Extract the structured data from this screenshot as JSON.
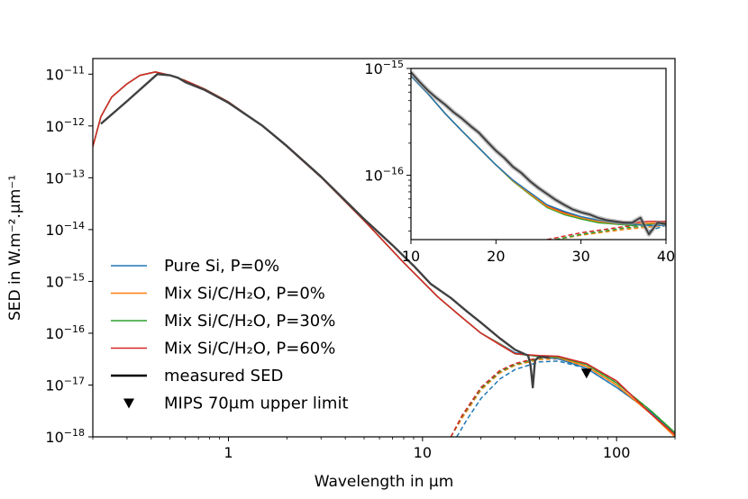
{
  "chart_data": [
    {
      "type": "line",
      "title": "",
      "xlabel": "Wavelength in μm",
      "ylabel": "SED in W.m⁻².μm⁻¹",
      "xscale": "log",
      "yscale": "log",
      "xlim": [
        0.2,
        200
      ],
      "ylim": [
        1e-18,
        2e-11
      ],
      "x_ticks": [
        {
          "value": 1,
          "label": "1"
        },
        {
          "value": 10,
          "label": "10"
        },
        {
          "value": 100,
          "label": "100"
        }
      ],
      "y_ticks": [
        {
          "value": 1e-18,
          "label": "10−18"
        },
        {
          "value": 1e-17,
          "label": "10−17"
        },
        {
          "value": 1e-16,
          "label": "10−16"
        },
        {
          "value": 1e-15,
          "label": "10−15"
        },
        {
          "value": 1e-14,
          "label": "10−14"
        },
        {
          "value": 1e-13,
          "label": "10−13"
        },
        {
          "value": 1e-12,
          "label": "10−12"
        },
        {
          "value": 1e-11,
          "label": "10−11"
        }
      ],
      "legend_position": "lower-left",
      "series": [
        {
          "name": "Pure Si, P=0%",
          "color": "#1f77b4",
          "style": "solid",
          "x": [
            0.2,
            0.22,
            0.25,
            0.3,
            0.35,
            0.42,
            0.5,
            0.6,
            0.75,
            1.0,
            1.5,
            2.0,
            3.0,
            5.0,
            8.0,
            12.0,
            16.0,
            20.0,
            25.0,
            30.0,
            40.0,
            50.0,
            70.0,
            100.0,
            150.0,
            200.0
          ],
          "y": [
            4e-13,
            1.5e-12,
            3.6e-12,
            6.5e-12,
            9.5e-12,
            1.1e-11,
            9.5e-12,
            7.5e-12,
            5.2e-12,
            2.9e-12,
            1e-12,
            4e-13,
            1.02e-13,
            1.5e-14,
            2.3e-15,
            5e-16,
            2e-16,
            1e-16,
            6.3e-17,
            4.2e-17,
            3.5e-17,
            3.2e-17,
            2.1e-17,
            9e-18,
            3e-18,
            1.15e-18
          ]
        },
        {
          "name": "Mix Si/C/H₂O, P=0%",
          "color": "#ff7f0e",
          "style": "solid",
          "x": [
            0.2,
            0.22,
            0.25,
            0.3,
            0.35,
            0.42,
            0.5,
            0.6,
            0.75,
            1.0,
            1.5,
            2.0,
            3.0,
            5.0,
            8.0,
            12.0,
            16.0,
            20.0,
            25.0,
            30.0,
            40.0,
            50.0,
            70.0,
            100.0,
            150.0,
            200.0
          ],
          "y": [
            4e-13,
            1.5e-12,
            3.6e-12,
            6.5e-12,
            9.5e-12,
            1.1e-11,
            9.5e-12,
            7.5e-12,
            5.2e-12,
            2.9e-12,
            1e-12,
            4e-13,
            1.02e-13,
            1.5e-14,
            2.3e-15,
            5e-16,
            2e-16,
            1e-16,
            6.2e-17,
            4e-17,
            3.6e-17,
            3.4e-17,
            2.3e-17,
            1e-17,
            2.8e-18,
            1e-18
          ]
        },
        {
          "name": "Mix Si/C/H₂O, P=30%",
          "color": "#2ca02c",
          "style": "solid",
          "x": [
            0.2,
            0.22,
            0.25,
            0.3,
            0.35,
            0.42,
            0.5,
            0.6,
            0.75,
            1.0,
            1.5,
            2.0,
            3.0,
            5.0,
            8.0,
            12.0,
            16.0,
            20.0,
            25.0,
            30.0,
            40.0,
            50.0,
            70.0,
            100.0,
            150.0,
            200.0
          ],
          "y": [
            4e-13,
            1.5e-12,
            3.6e-12,
            6.5e-12,
            9.5e-12,
            1.1e-11,
            9.5e-12,
            7.5e-12,
            5.2e-12,
            2.9e-12,
            1e-12,
            4e-13,
            1.02e-13,
            1.5e-14,
            2.3e-15,
            5e-16,
            2e-16,
            1e-16,
            6.1e-17,
            4e-17,
            3.6e-17,
            3.5e-17,
            2.5e-17,
            1.1e-17,
            3.2e-18,
            1.2e-18
          ]
        },
        {
          "name": "Mix Si/C/H₂O, P=60%",
          "color": "#d62728",
          "style": "solid",
          "x": [
            0.2,
            0.22,
            0.25,
            0.3,
            0.35,
            0.42,
            0.5,
            0.6,
            0.75,
            1.0,
            1.5,
            2.0,
            3.0,
            5.0,
            8.0,
            12.0,
            16.0,
            20.0,
            25.0,
            30.0,
            40.0,
            50.0,
            70.0,
            100.0,
            150.0,
            200.0
          ],
          "y": [
            4e-13,
            1.5e-12,
            3.6e-12,
            6.5e-12,
            9.5e-12,
            1.1e-11,
            9.5e-12,
            7.5e-12,
            5.2e-12,
            2.9e-12,
            1e-12,
            4e-13,
            1.02e-13,
            1.5e-14,
            2.3e-15,
            5e-16,
            2e-16,
            1e-16,
            6e-17,
            4e-17,
            3.7e-17,
            3.6e-17,
            2.6e-17,
            1.2e-17,
            2.8e-18,
            1.1e-18
          ]
        },
        {
          "name": "measured SED",
          "color": "#404040",
          "style": "solid",
          "x": [
            0.22,
            0.3,
            0.43,
            0.5,
            0.55,
            0.6,
            0.75,
            1.0,
            1.5,
            2.0,
            3.0,
            5.0,
            7.0,
            9.0,
            11.0,
            14.0,
            17.0,
            20.0,
            25.0,
            30.0,
            35.0,
            36.0,
            37.0,
            38.0,
            40.0,
            45.0
          ],
          "y": [
            1.1e-12,
            3e-12,
            1e-11,
            9.5e-12,
            8.5e-12,
            7e-12,
            5e-12,
            2.8e-12,
            1e-12,
            4.1e-13,
            1.05e-13,
            1.6e-14,
            5e-15,
            2e-15,
            9e-16,
            4.8e-16,
            2.6e-16,
            1.6e-16,
            8e-17,
            4.8e-17,
            3.7e-17,
            2.5e-17,
            9e-18,
            3e-17,
            3.5e-17,
            3.4e-17
          ]
        }
      ],
      "thermal_components": [
        {
          "name": "Pure Si, P=0%",
          "color": "#1f77b4",
          "style": "dashed",
          "x": [
            15,
            17,
            20,
            25,
            30,
            40,
            50,
            70,
            100,
            150,
            200
          ],
          "y": [
            1e-18,
            2.2e-18,
            5.5e-18,
            1.3e-17,
            2e-17,
            2.8e-17,
            2.9e-17,
            2.1e-17,
            9e-18,
            3e-18,
            1.15e-18
          ]
        },
        {
          "name": "Mix Si/C/H₂O, P=0%",
          "color": "#ff7f0e",
          "style": "dashed",
          "x": [
            14,
            16,
            20,
            25,
            30,
            40,
            50,
            70,
            100,
            150,
            200
          ],
          "y": [
            1e-18,
            2.3e-18,
            8e-18,
            1.7e-17,
            2.4e-17,
            3.1e-17,
            3.2e-17,
            2.3e-17,
            1e-17,
            2.8e-18,
            1e-18
          ]
        },
        {
          "name": "Mix Si/C/H₂O, P=30%",
          "color": "#2ca02c",
          "style": "dashed",
          "x": [
            14,
            16,
            20,
            25,
            30,
            40,
            50,
            70,
            100,
            150,
            200
          ],
          "y": [
            1e-18,
            2.5e-18,
            8.5e-18,
            1.8e-17,
            2.5e-17,
            3.3e-17,
            3.4e-17,
            2.5e-17,
            1.1e-17,
            3.2e-18,
            1.2e-18
          ]
        },
        {
          "name": "Mix Si/C/H₂O, P=60%",
          "color": "#d62728",
          "style": "dashed",
          "x": [
            14,
            16,
            20,
            25,
            30,
            40,
            50,
            70,
            100,
            150,
            200
          ],
          "y": [
            1e-18,
            2.6e-18,
            9e-18,
            1.9e-17,
            2.6e-17,
            3.4e-17,
            3.5e-17,
            2.6e-17,
            1.2e-17,
            2.8e-18,
            1.1e-18
          ]
        }
      ],
      "upper_limits": [
        {
          "name": "MIPS 70μm upper limit",
          "x": 70,
          "y": 1.7e-17,
          "marker": "triangle-down",
          "color": "#000000"
        }
      ],
      "legend": [
        {
          "label": "Pure Si, P=0%",
          "color": "#1f77b4",
          "marker": "line"
        },
        {
          "label": "Mix Si/C/H₂O, P=0%",
          "color": "#ff7f0e",
          "marker": "line"
        },
        {
          "label": "Mix Si/C/H₂O, P=30%",
          "color": "#2ca02c",
          "marker": "line"
        },
        {
          "label": "Mix Si/C/H₂O, P=60%",
          "color": "#d62728",
          "marker": "line"
        },
        {
          "label": "measured SED",
          "color": "#000000",
          "marker": "line"
        },
        {
          "label": "MIPS 70μm upper limit",
          "color": "#000000",
          "marker": "triangle-down"
        }
      ]
    },
    {
      "type": "line",
      "title": "",
      "inset": true,
      "xscale": "linear",
      "yscale": "log",
      "xlim": [
        10,
        40
      ],
      "ylim": [
        2.5e-17,
        1e-15
      ],
      "x_ticks": [
        {
          "value": 10,
          "label": "10"
        },
        {
          "value": 20,
          "label": "20"
        },
        {
          "value": 30,
          "label": "30"
        },
        {
          "value": 40,
          "label": "40"
        }
      ],
      "y_ticks": [
        {
          "value": 1e-15,
          "label": "10−15"
        },
        {
          "value": 1e-16,
          "label": "10−16"
        }
      ],
      "series": [
        {
          "name": "Mix Si/C/H₂O, P=60%",
          "color": "#d62728",
          "x": [
            10,
            12,
            14,
            16,
            18,
            20,
            22,
            24,
            26,
            28,
            30,
            32,
            34,
            36,
            38,
            40
          ],
          "y": [
            8.5e-16,
            5.8e-16,
            3.8e-16,
            2.6e-16,
            1.8e-16,
            1.25e-16,
            9e-17,
            6.8e-17,
            5.2e-17,
            4.5e-17,
            4e-17,
            3.8e-17,
            3.7e-17,
            3.6e-17,
            3.7e-17,
            3.7e-17
          ]
        },
        {
          "name": "Mix Si/C/H₂O, P=30%",
          "color": "#2ca02c",
          "x": [
            10,
            12,
            14,
            16,
            18,
            20,
            22,
            24,
            26,
            28,
            30,
            32,
            34,
            36,
            38,
            40
          ],
          "y": [
            8.5e-16,
            5.8e-16,
            3.8e-16,
            2.6e-16,
            1.8e-16,
            1.25e-16,
            8.8e-17,
            6.6e-17,
            5e-17,
            4.3e-17,
            3.9e-17,
            3.6e-17,
            3.5e-17,
            3.4e-17,
            3.5e-17,
            3.6e-17
          ]
        },
        {
          "name": "Mix Si/C/H₂O, P=0%",
          "color": "#ff7f0e",
          "x": [
            10,
            12,
            14,
            16,
            18,
            20,
            22,
            24,
            26,
            28,
            30,
            32,
            34,
            36,
            38,
            40
          ],
          "y": [
            8.5e-16,
            5.8e-16,
            3.8e-16,
            2.6e-16,
            1.8e-16,
            1.25e-16,
            8.9e-17,
            6.7e-17,
            5.1e-17,
            4.4e-17,
            4e-17,
            3.7e-17,
            3.55e-17,
            3.5e-17,
            3.55e-17,
            3.6e-17
          ]
        },
        {
          "name": "Pure Si, P=0%",
          "color": "#1f77b4",
          "x": [
            10,
            12,
            14,
            16,
            18,
            20,
            22,
            24,
            26,
            28,
            30,
            32,
            34,
            36,
            38,
            40
          ],
          "y": [
            8.5e-16,
            5.8e-16,
            3.8e-16,
            2.6e-16,
            1.8e-16,
            1.25e-16,
            9e-17,
            6.9e-17,
            5.3e-17,
            4.6e-17,
            4.1e-17,
            3.8e-17,
            3.6e-17,
            3.5e-17,
            3.4e-17,
            3.4e-17
          ]
        },
        {
          "name": "measured SED",
          "color": "#404040",
          "x": [
            10,
            11,
            12,
            13,
            14,
            15,
            16,
            17,
            18,
            19,
            20,
            21,
            22,
            23,
            24,
            25,
            26,
            27,
            28,
            29,
            30,
            31,
            32,
            33,
            34,
            35,
            36,
            37,
            38,
            39,
            40
          ],
          "y": [
            9.2e-16,
            7.5e-16,
            6.2e-16,
            5.3e-16,
            4.6e-16,
            3.9e-16,
            3.4e-16,
            2.9e-16,
            2.5e-16,
            2.05e-16,
            1.7e-16,
            1.45e-16,
            1.2e-16,
            1.05e-16,
            8.8e-17,
            7.6e-17,
            6.7e-17,
            5.9e-17,
            5.3e-17,
            4.8e-17,
            4.5e-17,
            4.3e-17,
            4e-17,
            3.8e-17,
            3.7e-17,
            3.6e-17,
            3.6e-17,
            4e-17,
            2.8e-17,
            3.6e-17,
            3.5e-17
          ]
        }
      ],
      "thermal_components": [
        {
          "name": "Pure Si, P=0%",
          "color": "#1f77b4",
          "x": [
            38,
            39,
            40
          ],
          "y": [
            3e-17,
            3.2e-17,
            3.4e-17
          ]
        },
        {
          "name": "Mix Si/C/H₂O, P=0%",
          "color": "#ff7f0e",
          "x": [
            27,
            30,
            35,
            40
          ],
          "y": [
            2.5e-17,
            2.75e-17,
            3.1e-17,
            3.4e-17
          ]
        },
        {
          "name": "Mix Si/C/H₂O, P=30%",
          "color": "#2ca02c",
          "x": [
            27,
            30,
            35,
            40
          ],
          "y": [
            2.5e-17,
            2.8e-17,
            3.2e-17,
            3.5e-17
          ]
        },
        {
          "name": "Mix Si/C/H₂O, P=60%",
          "color": "#d62728",
          "x": [
            26,
            30,
            35,
            40
          ],
          "y": [
            2.5e-17,
            2.9e-17,
            3.3e-17,
            3.6e-17
          ]
        }
      ]
    }
  ]
}
